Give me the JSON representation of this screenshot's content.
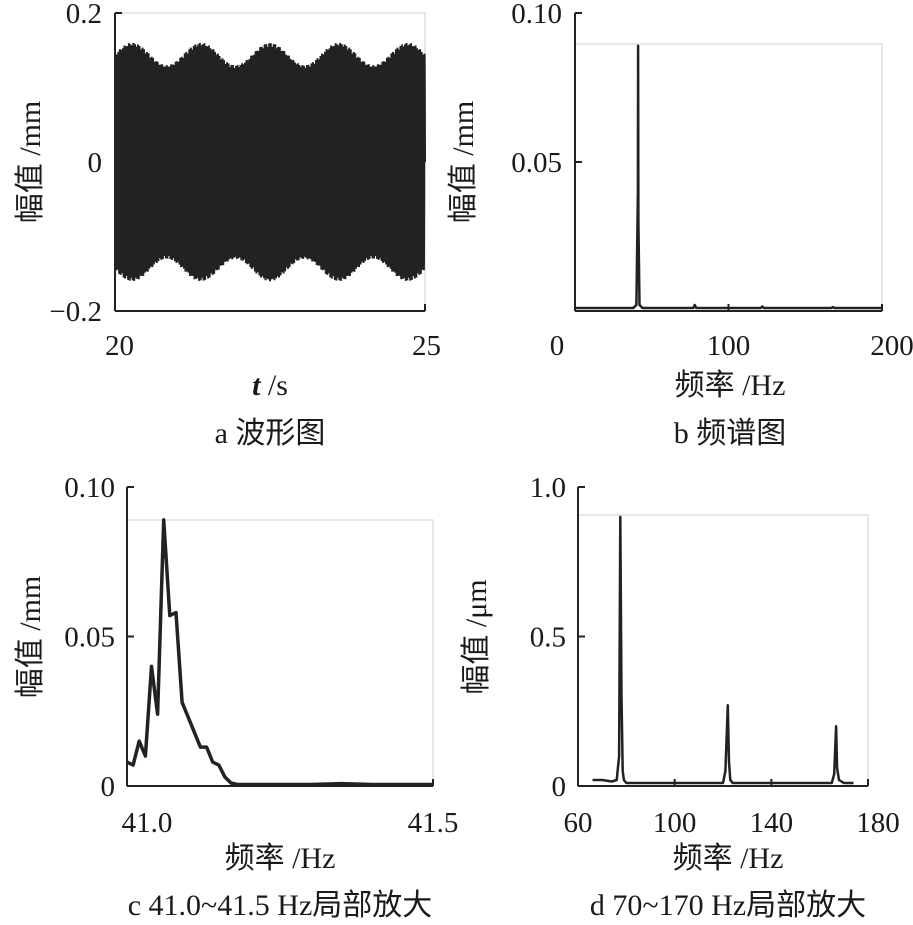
{
  "colors": {
    "ink": "#222222",
    "frame": "#222222",
    "faint_frame": "#cfcfcf"
  },
  "chart_data": [
    {
      "type": "line",
      "panel": "a",
      "caption": "a  波形图",
      "xlabel_italic": "t",
      "xlabel_unit": " /s",
      "ylabel": "幅值 /mm",
      "xlim": [
        20,
        25
      ],
      "ylim": [
        -0.2,
        0.2
      ],
      "xticks": [
        "20",
        "25"
      ],
      "yticks": [
        "0.2",
        "0",
        "−0.2"
      ],
      "yticks_values": [
        0.2,
        0,
        -0.2
      ],
      "xticks_values": [
        20,
        25
      ],
      "signal": {
        "frequency_hz": 41.1,
        "amplitude_min": 0.13,
        "amplitude_max": 0.16,
        "t_start": 20,
        "t_end": 25
      }
    },
    {
      "type": "line",
      "panel": "b",
      "caption": "b  频谱图",
      "xlabel": "频率 /Hz",
      "ylabel": "幅值 /mm",
      "xlim": [
        0,
        200
      ],
      "ylim": [
        0,
        0.1
      ],
      "xticks": [
        "0",
        "100",
        "200"
      ],
      "xticks_values": [
        0,
        100,
        200
      ],
      "yticks": [
        "0.10",
        "0.05"
      ],
      "yticks_values": [
        0.1,
        0.05
      ],
      "x": [
        0,
        10,
        20,
        30,
        38,
        40,
        41,
        41.1,
        41.3,
        42,
        44,
        50,
        60,
        70,
        77,
        78,
        79,
        90,
        100,
        110,
        121,
        122,
        123,
        140,
        160,
        167,
        168,
        169,
        180,
        200
      ],
      "y": [
        0.001,
        0.001,
        0.001,
        0.001,
        0.001,
        0.002,
        0.04,
        0.089,
        0.03,
        0.002,
        0.001,
        0.001,
        0.001,
        0.001,
        0.001,
        0.002,
        0.001,
        0.001,
        0.001,
        0.001,
        0.001,
        0.0015,
        0.001,
        0.001,
        0.001,
        0.001,
        0.0013,
        0.001,
        0.001,
        0.001
      ]
    },
    {
      "type": "line",
      "panel": "c",
      "caption": "c  41.0~41.5 Hz局部放大",
      "xlabel": "频率 /Hz",
      "ylabel": "幅值 /mm",
      "xlim": [
        41.0,
        41.5
      ],
      "ylim": [
        0,
        0.1
      ],
      "xticks": [
        "41.0",
        "41.5"
      ],
      "xticks_values": [
        41.0,
        41.5
      ],
      "yticks": [
        "0.10",
        "0.05",
        "0"
      ],
      "yticks_values": [
        0.1,
        0.05,
        0
      ],
      "x": [
        41.0,
        41.01,
        41.02,
        41.03,
        41.04,
        41.05,
        41.06,
        41.07,
        41.08,
        41.09,
        41.1,
        41.11,
        41.12,
        41.13,
        41.14,
        41.15,
        41.16,
        41.17,
        41.18,
        41.2,
        41.25,
        41.3,
        41.35,
        41.4,
        41.45,
        41.5
      ],
      "y": [
        0.008,
        0.007,
        0.015,
        0.01,
        0.04,
        0.024,
        0.089,
        0.057,
        0.058,
        0.028,
        0.023,
        0.018,
        0.013,
        0.013,
        0.008,
        0.007,
        0.003,
        0.001,
        0.0005,
        0.0005,
        0.0005,
        0.0005,
        0.0008,
        0.0005,
        0.0005,
        0.0005
      ]
    },
    {
      "type": "line",
      "panel": "d",
      "caption": "d  70~170 Hz局部放大",
      "xlabel": "频率 /Hz",
      "ylabel": "幅值 /μm",
      "xlim": [
        60,
        180
      ],
      "ylim": [
        0,
        1.0
      ],
      "xticks": [
        "60",
        "100",
        "140",
        "180"
      ],
      "xticks_values": [
        60,
        100,
        140,
        180
      ],
      "yticks": [
        "1.0",
        "0.5",
        "0"
      ],
      "yticks_values": [
        1.0,
        0.5,
        0
      ],
      "x": [
        66,
        70,
        74,
        76,
        77,
        77.5,
        78,
        78.5,
        79,
        80,
        90,
        100,
        110,
        120,
        121,
        122,
        122.5,
        123,
        124,
        130,
        140,
        150,
        160,
        165,
        166,
        166.8,
        167.2,
        168,
        170,
        174
      ],
      "y": [
        0.02,
        0.02,
        0.015,
        0.02,
        0.1,
        0.9,
        0.3,
        0.05,
        0.02,
        0.01,
        0.01,
        0.01,
        0.01,
        0.01,
        0.05,
        0.27,
        0.08,
        0.02,
        0.01,
        0.01,
        0.01,
        0.01,
        0.01,
        0.01,
        0.04,
        0.2,
        0.06,
        0.02,
        0.01,
        0.01
      ]
    }
  ]
}
